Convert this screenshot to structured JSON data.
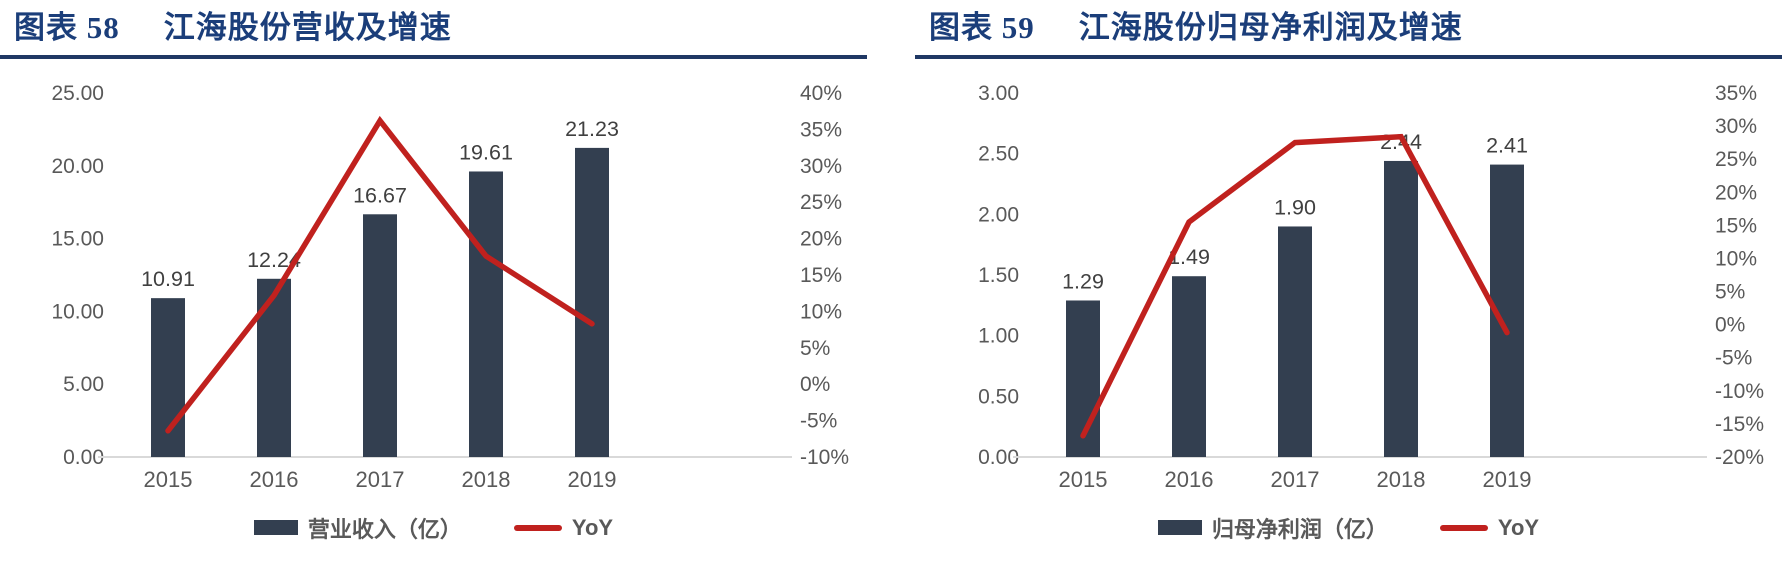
{
  "colors": {
    "title_navy": "#1B3E7A",
    "underline_navy": "#1F3864",
    "bar_navy": "#333F50",
    "line_red": "#C0211E",
    "axis_gray": "#595959",
    "data_label_gray": "#404040",
    "baseline_gray": "#D9D9D9"
  },
  "chart_data": [
    {
      "type": "bar+line",
      "figure_label": "图表 58",
      "title": "江海股份营收及增速",
      "categories": [
        "2015",
        "2016",
        "2017",
        "2018",
        "2019"
      ],
      "series": [
        {
          "name": "营业收入（亿）",
          "type": "bar",
          "axis": "left",
          "values": [
            10.91,
            12.24,
            16.67,
            19.61,
            21.23
          ],
          "value_labels": [
            "10.91",
            "12.24",
            "16.67",
            "19.61",
            "21.23"
          ]
        },
        {
          "name": "YoY",
          "type": "line",
          "axis": "right",
          "values_pct": [
            -6.4,
            12.2,
            36.2,
            17.6,
            8.3
          ]
        }
      ],
      "left_axis": {
        "min": 0,
        "max": 25,
        "step": 5,
        "tick_labels": [
          "0.00",
          "5.00",
          "10.00",
          "15.00",
          "20.00",
          "25.00"
        ]
      },
      "right_axis": {
        "min": -10,
        "max": 40,
        "step": 5,
        "tick_labels": [
          "-10%",
          "-5%",
          "0%",
          "5%",
          "10%",
          "15%",
          "20%",
          "25%",
          "30%",
          "35%",
          "40%"
        ]
      },
      "grid": false,
      "legend_position": "bottom"
    },
    {
      "type": "bar+line",
      "figure_label": "图表 59",
      "title": "江海股份归母净利润及增速",
      "categories": [
        "2015",
        "2016",
        "2017",
        "2018",
        "2019"
      ],
      "series": [
        {
          "name": "归母净利润（亿）",
          "type": "bar",
          "axis": "left",
          "values": [
            1.29,
            1.49,
            1.9,
            2.44,
            2.41
          ],
          "value_labels": [
            "1.29",
            "1.49",
            "1.90",
            "2.44",
            "2.41"
          ]
        },
        {
          "name": "YoY",
          "type": "line",
          "axis": "right",
          "values_pct": [
            -16.8,
            15.5,
            27.5,
            28.4,
            -1.2
          ]
        }
      ],
      "left_axis": {
        "min": 0,
        "max": 3,
        "step": 0.5,
        "tick_labels": [
          "0.00",
          "0.50",
          "1.00",
          "1.50",
          "2.00",
          "2.50",
          "3.00"
        ]
      },
      "right_axis": {
        "min": -20,
        "max": 35,
        "step": 5,
        "tick_labels": [
          "-20%",
          "-15%",
          "-10%",
          "-5%",
          "0%",
          "5%",
          "10%",
          "15%",
          "20%",
          "25%",
          "30%",
          "35%"
        ]
      },
      "grid": false,
      "legend_position": "bottom"
    }
  ]
}
